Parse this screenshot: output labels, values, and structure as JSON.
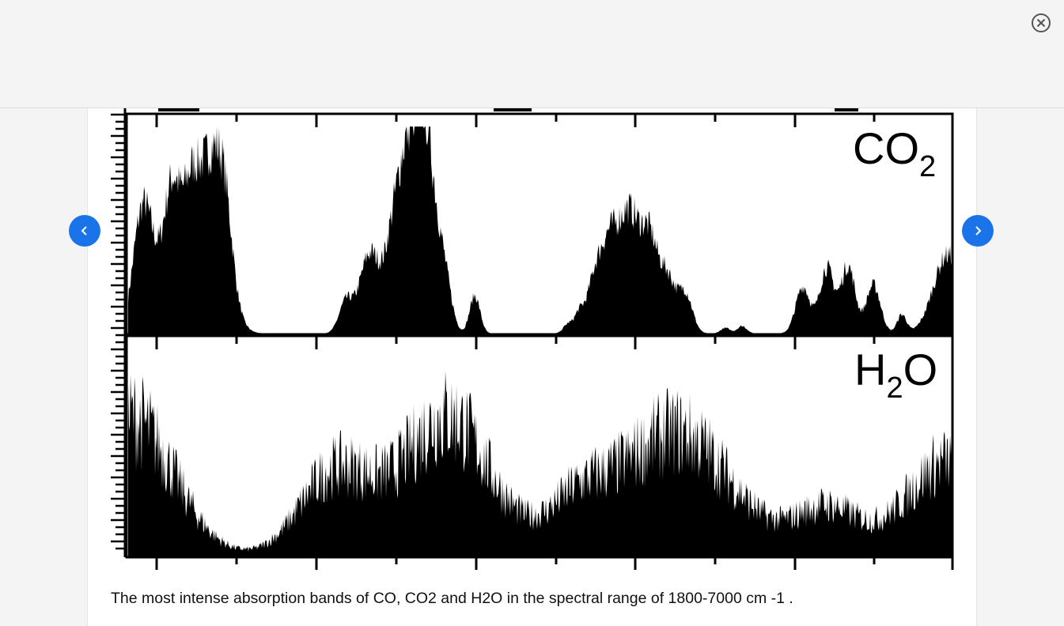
{
  "viewer": {
    "close_icon": "close-circle-icon",
    "prev_icon": "chevron-left-icon",
    "next_icon": "chevron-right-icon",
    "accent_color": "#1a73e8"
  },
  "figure": {
    "panels": [
      {
        "molecule": "CO",
        "sub": "2"
      },
      {
        "molecule": "H",
        "sub": "2",
        "suffix": "O"
      }
    ]
  },
  "caption": "The most intense absorption bands of CO, CO2 and H2O in the spectral range of 1800-7000 cm -1 ."
}
